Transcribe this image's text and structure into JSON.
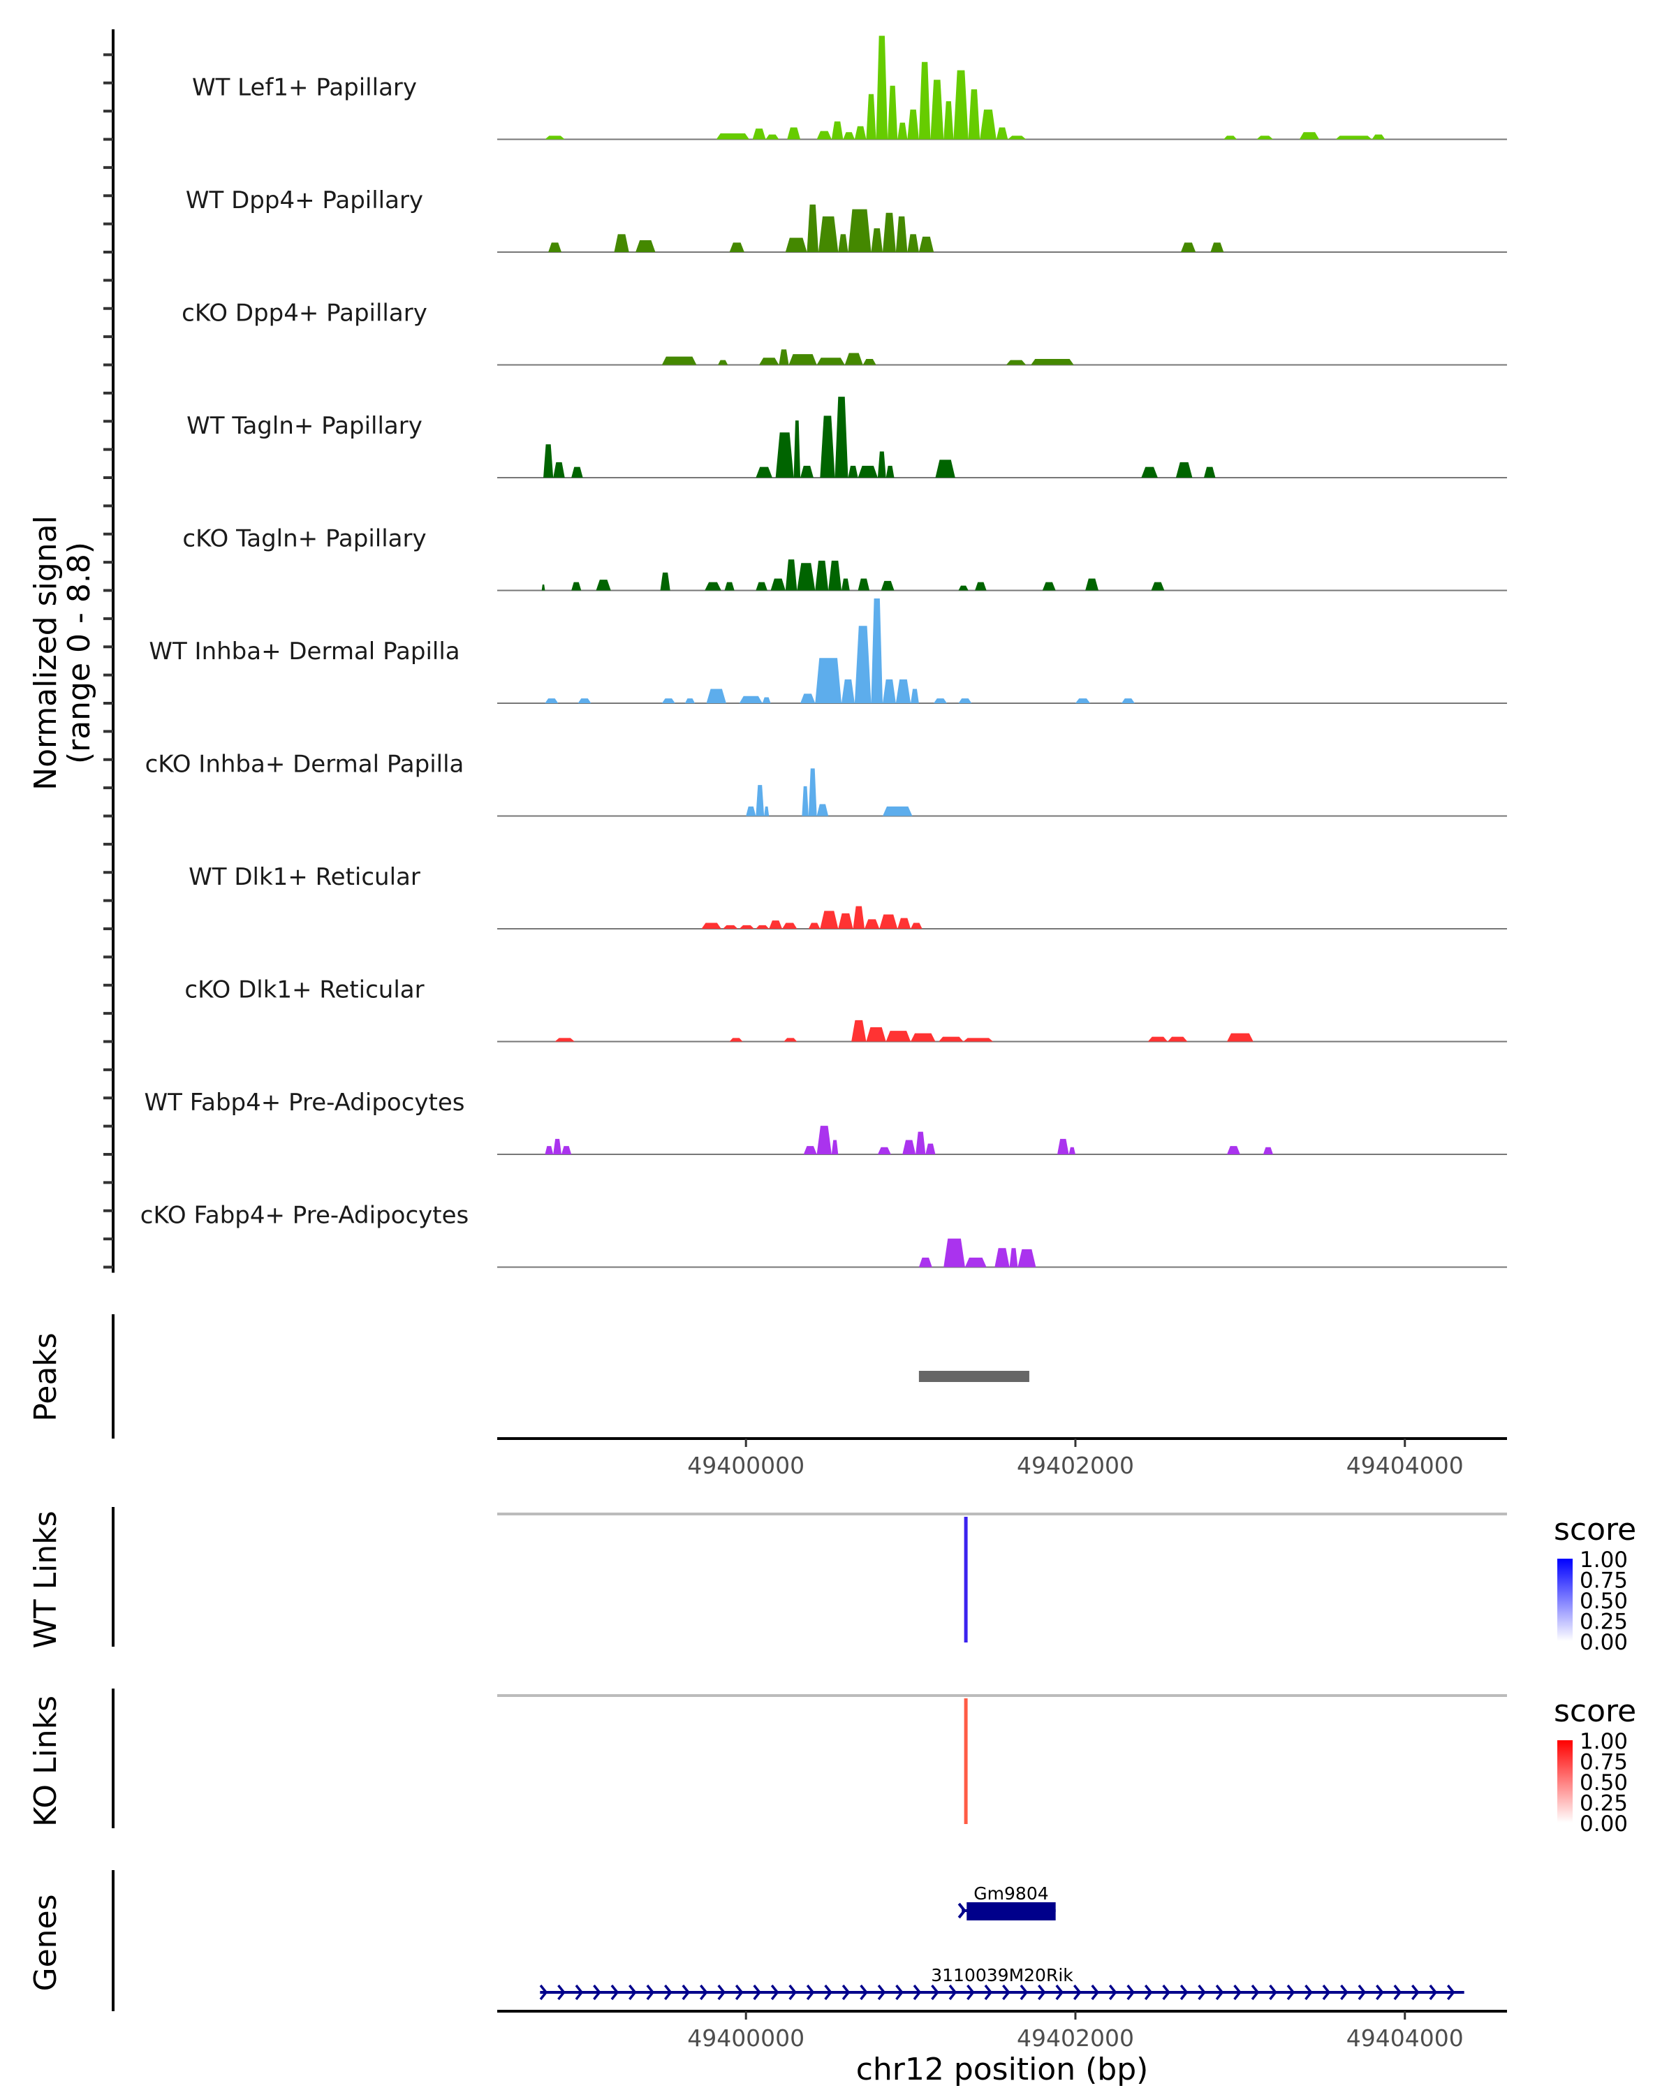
{
  "chart_data": {
    "type": "area",
    "title": "",
    "ylabel": "Normalized signal\n(range 0 - 8.8)",
    "ylabel_lines": [
      "Normalized signal",
      "(range 0 - 8.8)"
    ],
    "ylim": [
      0,
      8.8
    ],
    "xlabel": "chr12 position (bp)",
    "xlim": [
      49398490,
      49404620
    ],
    "xticks": [
      49400000,
      49402000,
      49404000
    ],
    "xtick_labels": [
      "49400000",
      "49402000",
      "49404000"
    ],
    "tracks": [
      {
        "name": "WT Lef1+ Papillary",
        "color": "#66CC00",
        "segments": [
          [
            49398780,
            49398900,
            0.3
          ],
          [
            49399820,
            49400020,
            0.5
          ],
          [
            49400040,
            49400120,
            0.9
          ],
          [
            49400120,
            49400200,
            0.4
          ],
          [
            49400250,
            49400330,
            1.0
          ],
          [
            49400430,
            49400520,
            0.7
          ],
          [
            49400520,
            49400590,
            1.5
          ],
          [
            49400590,
            49400660,
            0.6
          ],
          [
            49400660,
            49400730,
            1.1
          ],
          [
            49400730,
            49400790,
            3.8
          ],
          [
            49400790,
            49400860,
            8.7
          ],
          [
            49400860,
            49400920,
            4.5
          ],
          [
            49400920,
            49400980,
            1.4
          ],
          [
            49400980,
            49401050,
            2.5
          ],
          [
            49401050,
            49401120,
            6.5
          ],
          [
            49401120,
            49401200,
            5.0
          ],
          [
            49401200,
            49401260,
            3.2
          ],
          [
            49401260,
            49401350,
            5.8
          ],
          [
            49401350,
            49401420,
            4.2
          ],
          [
            49401420,
            49401520,
            2.5
          ],
          [
            49401520,
            49401590,
            1.0
          ],
          [
            49401590,
            49401700,
            0.3
          ],
          [
            49402900,
            49402980,
            0.3
          ],
          [
            49403100,
            49403200,
            0.3
          ],
          [
            49403360,
            49403480,
            0.6
          ],
          [
            49403580,
            49403800,
            0.3
          ],
          [
            49403800,
            49403880,
            0.4
          ]
        ]
      },
      {
        "name": "WT Dpp4+ Papillary",
        "color": "#448800",
        "segments": [
          [
            49398800,
            49398880,
            0.8
          ],
          [
            49399200,
            49399290,
            1.5
          ],
          [
            49399330,
            49399450,
            1.0
          ],
          [
            49399900,
            49399990,
            0.8
          ],
          [
            49400240,
            49400370,
            1.2
          ],
          [
            49400370,
            49400440,
            4.0
          ],
          [
            49400440,
            49400560,
            3.0
          ],
          [
            49400560,
            49400620,
            1.5
          ],
          [
            49400620,
            49400760,
            3.6
          ],
          [
            49400760,
            49400830,
            2.0
          ],
          [
            49400830,
            49400910,
            3.3
          ],
          [
            49400910,
            49400980,
            3.0
          ],
          [
            49400980,
            49401050,
            1.5
          ],
          [
            49401050,
            49401140,
            1.3
          ],
          [
            49402640,
            49402730,
            0.8
          ],
          [
            49402820,
            49402900,
            0.8
          ]
        ]
      },
      {
        "name": "cKO Dpp4+ Papillary",
        "color": "#448800",
        "segments": [
          [
            49399490,
            49399700,
            0.7
          ],
          [
            49399830,
            49399890,
            0.4
          ],
          [
            49400080,
            49400200,
            0.6
          ],
          [
            49400200,
            49400260,
            1.3
          ],
          [
            49400260,
            49400430,
            0.9
          ],
          [
            49400430,
            49400600,
            0.6
          ],
          [
            49400600,
            49400710,
            1.0
          ],
          [
            49400710,
            49400790,
            0.5
          ],
          [
            49401580,
            49401700,
            0.4
          ],
          [
            49401730,
            49401990,
            0.5
          ]
        ]
      },
      {
        "name": "WT Tagln+ Papillary",
        "color": "#006400",
        "segments": [
          [
            49398770,
            49398830,
            2.8
          ],
          [
            49398830,
            49398900,
            1.3
          ],
          [
            49398940,
            49399010,
            0.9
          ],
          [
            49400060,
            49400160,
            0.9
          ],
          [
            49400180,
            49400290,
            3.8
          ],
          [
            49400290,
            49400330,
            4.8
          ],
          [
            49400330,
            49400410,
            1.0
          ],
          [
            49400450,
            49400540,
            5.2
          ],
          [
            49400540,
            49400620,
            6.8
          ],
          [
            49400620,
            49400680,
            1.0
          ],
          [
            49400680,
            49400800,
            1.0
          ],
          [
            49400800,
            49400850,
            2.2
          ],
          [
            49400850,
            49400900,
            1.0
          ],
          [
            49401150,
            49401270,
            1.5
          ],
          [
            49402400,
            49402500,
            0.9
          ],
          [
            49402610,
            49402710,
            1.3
          ],
          [
            49402780,
            49402850,
            0.9
          ]
        ]
      },
      {
        "name": "cKO Tagln+ Papillary",
        "color": "#006400",
        "segments": [
          [
            49398760,
            49398780,
            0.5
          ],
          [
            49398940,
            49399000,
            0.7
          ],
          [
            49399090,
            49399180,
            0.9
          ],
          [
            49399480,
            49399540,
            1.5
          ],
          [
            49399750,
            49399850,
            0.7
          ],
          [
            49399870,
            49399930,
            0.7
          ],
          [
            49400060,
            49400130,
            0.7
          ],
          [
            49400150,
            49400240,
            1.0
          ],
          [
            49400240,
            49400310,
            2.6
          ],
          [
            49400310,
            49400420,
            2.3
          ],
          [
            49400420,
            49400500,
            2.5
          ],
          [
            49400500,
            49400580,
            2.5
          ],
          [
            49400580,
            49400630,
            1.0
          ],
          [
            49400680,
            49400750,
            1.0
          ],
          [
            49400820,
            49400900,
            0.8
          ],
          [
            49401290,
            49401350,
            0.4
          ],
          [
            49401390,
            49401460,
            0.7
          ],
          [
            49401800,
            49401880,
            0.7
          ],
          [
            49402060,
            49402140,
            1.0
          ],
          [
            49402460,
            49402540,
            0.7
          ]
        ]
      },
      {
        "name": "WT Inhba+ Dermal Papilla",
        "color": "#5DADEC",
        "segments": [
          [
            49398780,
            49398860,
            0.4
          ],
          [
            49398980,
            49399060,
            0.4
          ],
          [
            49399490,
            49399570,
            0.4
          ],
          [
            49399630,
            49399690,
            0.4
          ],
          [
            49399760,
            49399880,
            1.2
          ],
          [
            49399960,
            49400100,
            0.6
          ],
          [
            49400100,
            49400150,
            0.5
          ],
          [
            49400330,
            49400420,
            0.8
          ],
          [
            49400420,
            49400580,
            3.8
          ],
          [
            49400580,
            49400660,
            2.0
          ],
          [
            49400660,
            49400760,
            6.5
          ],
          [
            49400760,
            49400830,
            8.8
          ],
          [
            49400830,
            49400910,
            2.0
          ],
          [
            49400910,
            49401000,
            2.0
          ],
          [
            49401000,
            49401050,
            1.2
          ],
          [
            49401140,
            49401220,
            0.4
          ],
          [
            49401290,
            49401370,
            0.4
          ],
          [
            49402000,
            49402090,
            0.4
          ],
          [
            49402280,
            49402360,
            0.4
          ]
        ]
      },
      {
        "name": "cKO Inhba+ Dermal Papilla",
        "color": "#5DADEC",
        "segments": [
          [
            49400000,
            49400060,
            0.8
          ],
          [
            49400060,
            49400110,
            2.6
          ],
          [
            49400110,
            49400140,
            0.8
          ],
          [
            49400340,
            49400380,
            2.5
          ],
          [
            49400380,
            49400430,
            4.0
          ],
          [
            49400430,
            49400500,
            1.0
          ],
          [
            49400830,
            49401010,
            0.8
          ]
        ]
      },
      {
        "name": "WT Dlk1+ Reticular",
        "color": "#FF3333",
        "segments": [
          [
            49399730,
            49399850,
            0.5
          ],
          [
            49399860,
            49399950,
            0.3
          ],
          [
            49399960,
            49400050,
            0.3
          ],
          [
            49400060,
            49400140,
            0.3
          ],
          [
            49400140,
            49400220,
            0.7
          ],
          [
            49400220,
            49400310,
            0.5
          ],
          [
            49400380,
            49400450,
            0.5
          ],
          [
            49400450,
            49400560,
            1.5
          ],
          [
            49400560,
            49400650,
            1.3
          ],
          [
            49400650,
            49400720,
            1.9
          ],
          [
            49400720,
            49400810,
            0.8
          ],
          [
            49400810,
            49400920,
            1.2
          ],
          [
            49400920,
            49401000,
            0.9
          ],
          [
            49401000,
            49401070,
            0.5
          ]
        ]
      },
      {
        "name": "cKO Dlk1+ Reticular",
        "color": "#FF3333",
        "segments": [
          [
            49398840,
            49398960,
            0.3
          ],
          [
            49399900,
            49399980,
            0.3
          ],
          [
            49400230,
            49400310,
            0.3
          ],
          [
            49400640,
            49400730,
            1.8
          ],
          [
            49400730,
            49400850,
            1.2
          ],
          [
            49400850,
            49401000,
            0.9
          ],
          [
            49401000,
            49401150,
            0.7
          ],
          [
            49401170,
            49401320,
            0.4
          ],
          [
            49401320,
            49401500,
            0.3
          ],
          [
            49402440,
            49402560,
            0.4
          ],
          [
            49402560,
            49402680,
            0.4
          ],
          [
            49402920,
            49403080,
            0.7
          ]
        ]
      },
      {
        "name": "WT Fabp4+ Pre-Adipocytes",
        "color": "#AA33EE",
        "segments": [
          [
            49398780,
            49398830,
            0.7
          ],
          [
            49398830,
            49398880,
            1.3
          ],
          [
            49398880,
            49398940,
            0.7
          ],
          [
            49400350,
            49400430,
            0.7
          ],
          [
            49400430,
            49400520,
            2.4
          ],
          [
            49400520,
            49400560,
            1.2
          ],
          [
            49400800,
            49400880,
            0.6
          ],
          [
            49400950,
            49401030,
            1.2
          ],
          [
            49401030,
            49401090,
            1.9
          ],
          [
            49401090,
            49401150,
            0.9
          ],
          [
            49401890,
            49401960,
            1.3
          ],
          [
            49401960,
            49402000,
            0.6
          ],
          [
            49402920,
            49403000,
            0.7
          ],
          [
            49403140,
            49403200,
            0.6
          ]
        ]
      },
      {
        "name": "cKO Fabp4+ Pre-Adipocytes",
        "color": "#AA33EE",
        "segments": [
          [
            49401050,
            49401130,
            0.8
          ],
          [
            49401200,
            49401330,
            2.4
          ],
          [
            49401330,
            49401460,
            0.8
          ],
          [
            49401510,
            49401600,
            1.6
          ],
          [
            49401600,
            49401650,
            1.6
          ],
          [
            49401650,
            49401760,
            1.5
          ]
        ]
      }
    ],
    "peaks": {
      "label": "Peaks",
      "color": "#666666",
      "regions": [
        [
          49401050,
          49401720
        ]
      ]
    },
    "links": [
      {
        "label": "WT Links",
        "color": "#3B22EE",
        "position": 49401335,
        "score": 1.0,
        "legend": {
          "title": "score",
          "ticks": [
            "1.00",
            "0.75",
            "0.50",
            "0.25",
            "0.00"
          ],
          "low_color": "#FFFFFF",
          "high_color": "#0000FF"
        }
      },
      {
        "label": "KO Links",
        "color": "#FF5C45",
        "position": 49401335,
        "score": 0.8,
        "legend": {
          "title": "score",
          "ticks": [
            "1.00",
            "0.75",
            "0.50",
            "0.25",
            "0.00"
          ],
          "low_color": "#FFFFFF",
          "high_color": "#FF0000"
        }
      }
    ],
    "genes": {
      "label": "Genes",
      "color": "#00008B",
      "items": [
        {
          "name": "Gm9804",
          "start": 49401310,
          "end": 49401880,
          "strand": "+",
          "exon": [
            49401340,
            49401880
          ]
        },
        {
          "name": "3110039M20Rik",
          "start": 49398750,
          "end": 49404360,
          "strand": "+"
        }
      ]
    }
  }
}
